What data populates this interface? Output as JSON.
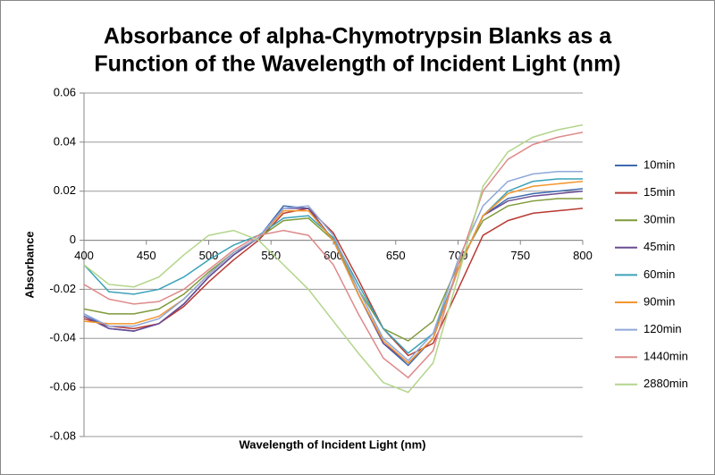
{
  "chart_data": {
    "type": "line",
    "title": "Absorbance of alpha-Chymotrypsin Blanks as a",
    "subtitle": "Function of the Wavelength of Incident Light (nm)",
    "x_label": "Wavelength of Incident Light (nm)",
    "y_label": "Absorbance",
    "x": [
      400,
      420,
      440,
      460,
      480,
      500,
      520,
      540,
      560,
      580,
      600,
      620,
      640,
      660,
      680,
      700,
      720,
      740,
      760,
      780,
      800
    ],
    "xlim": [
      400,
      800
    ],
    "xticks": [
      400,
      450,
      500,
      550,
      600,
      650,
      700,
      750,
      800
    ],
    "ylim": [
      -0.08,
      0.06
    ],
    "yticks": [
      0.06,
      0.04,
      0.02,
      0,
      -0.02,
      -0.04,
      -0.06,
      -0.08
    ],
    "grid": true,
    "legend": "right",
    "series": [
      {
        "name": "10min",
        "color": "#3f6bb0",
        "values": [
          -0.03,
          -0.036,
          -0.037,
          -0.034,
          -0.026,
          -0.015,
          -0.006,
          0.001,
          0.014,
          0.013,
          0.0,
          -0.022,
          -0.042,
          -0.051,
          -0.04,
          -0.012,
          0.01,
          0.017,
          0.019,
          0.02,
          0.021
        ]
      },
      {
        "name": "15min",
        "color": "#b93a32",
        "values": [
          -0.032,
          -0.035,
          -0.036,
          -0.034,
          -0.027,
          -0.017,
          -0.008,
          0.0,
          0.011,
          0.013,
          0.003,
          -0.016,
          -0.036,
          -0.047,
          -0.042,
          -0.02,
          0.002,
          0.008,
          0.011,
          0.012,
          0.013
        ]
      },
      {
        "name": "30min",
        "color": "#7f9a3a",
        "values": [
          -0.028,
          -0.03,
          -0.03,
          -0.028,
          -0.022,
          -0.013,
          -0.005,
          0.001,
          0.008,
          0.009,
          0.0,
          -0.02,
          -0.036,
          -0.041,
          -0.033,
          -0.01,
          0.008,
          0.014,
          0.016,
          0.017,
          0.017
        ]
      },
      {
        "name": "45min",
        "color": "#6a4c93",
        "values": [
          -0.031,
          -0.036,
          -0.037,
          -0.034,
          -0.026,
          -0.015,
          -0.006,
          0.001,
          0.013,
          0.013,
          0.0,
          -0.022,
          -0.042,
          -0.05,
          -0.04,
          -0.012,
          0.01,
          0.016,
          0.018,
          0.019,
          0.02
        ]
      },
      {
        "name": "60min",
        "color": "#3aa2b8",
        "values": [
          -0.01,
          -0.021,
          -0.022,
          -0.02,
          -0.015,
          -0.008,
          -0.002,
          0.002,
          0.009,
          0.01,
          0.001,
          -0.018,
          -0.036,
          -0.046,
          -0.038,
          -0.012,
          0.01,
          0.02,
          0.024,
          0.025,
          0.025
        ]
      },
      {
        "name": "90min",
        "color": "#f3962d",
        "values": [
          -0.033,
          -0.034,
          -0.034,
          -0.031,
          -0.024,
          -0.014,
          -0.005,
          0.001,
          0.012,
          0.012,
          0.0,
          -0.022,
          -0.041,
          -0.05,
          -0.04,
          -0.012,
          0.01,
          0.019,
          0.022,
          0.023,
          0.024
        ]
      },
      {
        "name": "120min",
        "color": "#8fa8d8",
        "values": [
          -0.03,
          -0.035,
          -0.035,
          -0.032,
          -0.024,
          -0.014,
          -0.005,
          0.001,
          0.013,
          0.014,
          0.002,
          -0.02,
          -0.04,
          -0.049,
          -0.038,
          -0.008,
          0.014,
          0.024,
          0.027,
          0.028,
          0.028
        ]
      },
      {
        "name": "1440min",
        "color": "#de8a8a",
        "values": [
          -0.018,
          -0.024,
          -0.026,
          -0.025,
          -0.02,
          -0.012,
          -0.004,
          0.002,
          0.004,
          0.002,
          -0.01,
          -0.03,
          -0.048,
          -0.056,
          -0.045,
          -0.01,
          0.02,
          0.033,
          0.039,
          0.042,
          0.044
        ]
      },
      {
        "name": "2880min",
        "color": "#b3d58b",
        "values": [
          -0.01,
          -0.018,
          -0.019,
          -0.015,
          -0.006,
          0.002,
          0.004,
          0.0,
          -0.01,
          -0.02,
          -0.033,
          -0.046,
          -0.058,
          -0.062,
          -0.05,
          -0.015,
          0.022,
          0.036,
          0.042,
          0.045,
          0.047
        ]
      }
    ]
  }
}
